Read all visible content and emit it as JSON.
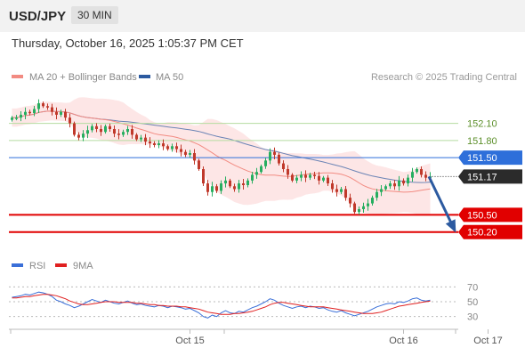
{
  "header": {
    "symbol": "USD/JPY",
    "timeframe": "30 MIN",
    "datetime": "Thursday, October 16, 2025 1:05:37 PM CET"
  },
  "legend": {
    "ma20_label": "MA 20 + Bollinger Bands",
    "ma50_label": "MA 50",
    "copyright": "Research © 2025 Trading Central"
  },
  "rsi_legend": {
    "rsi_label": "RSI",
    "ma_label": "9MA"
  },
  "colors": {
    "ma20": "#f28b82",
    "ma50": "#2c5aa0",
    "band_fill": "#fde2e2",
    "up": "#27ae60",
    "down": "#c0392b",
    "resistance": "#b5dca0",
    "pivot": "#2e6fda",
    "support": "#e10000",
    "rsi": "#3a6fd8",
    "rsi_ma": "#e02020"
  },
  "chart_data": [
    {
      "type": "candlestick",
      "title": "USD/JPY 30 MIN",
      "ylim": [
        149.9,
        152.7
      ],
      "x_ticks": [
        {
          "index": 40,
          "label": "Oct 15"
        },
        {
          "index": 88,
          "label": "Oct 16"
        },
        {
          "index": 107,
          "label": "Oct 17"
        }
      ],
      "levels": [
        {
          "value": 152.1,
          "label": "152.10",
          "role": "resistance"
        },
        {
          "value": 151.8,
          "label": "151.80",
          "role": "resistance"
        },
        {
          "value": 151.5,
          "label": "151.50",
          "role": "pivot"
        },
        {
          "value": 150.5,
          "label": "150.50",
          "role": "support"
        },
        {
          "value": 150.2,
          "label": "150.20",
          "role": "support"
        }
      ],
      "last_price": {
        "value": 151.17,
        "label": "151.17"
      },
      "forecast": {
        "from": 151.17,
        "to": 150.2
      },
      "close": [
        152.2,
        152.2,
        152.25,
        152.3,
        152.28,
        152.35,
        152.45,
        152.4,
        152.38,
        152.3,
        152.25,
        152.3,
        152.2,
        152.1,
        151.9,
        151.85,
        151.92,
        151.98,
        152.05,
        152.0,
        151.95,
        152.05,
        152.0,
        151.92,
        151.9,
        151.95,
        152.0,
        151.9,
        151.82,
        151.85,
        151.78,
        151.75,
        151.72,
        151.75,
        151.7,
        151.65,
        151.7,
        151.65,
        151.6,
        151.55,
        151.58,
        151.45,
        151.3,
        151.05,
        150.9,
        151.0,
        150.92,
        151.05,
        151.1,
        151.0,
        150.95,
        151.05,
        151.02,
        151.1,
        151.2,
        151.25,
        151.35,
        151.45,
        151.6,
        151.55,
        151.4,
        151.3,
        151.2,
        151.1,
        151.15,
        151.2,
        151.15,
        151.2,
        151.18,
        151.1,
        151.15,
        151.05,
        150.95,
        150.9,
        150.95,
        150.8,
        150.7,
        150.55,
        150.6,
        150.65,
        150.7,
        150.8,
        150.9,
        150.95,
        151.0,
        151.05,
        151.0,
        151.1,
        151.05,
        151.15,
        151.25,
        151.3,
        151.2,
        151.15,
        151.17
      ],
      "rsi": {
        "ylim": [
          20,
          80
        ],
        "levels": [
          70,
          50,
          30
        ],
        "rsi": [
          56,
          57,
          58,
          60,
          59,
          61,
          63,
          62,
          60,
          57,
          52,
          50,
          47,
          45,
          42,
          44,
          47,
          50,
          53,
          51,
          49,
          52,
          50,
          48,
          47,
          49,
          51,
          48,
          46,
          47,
          45,
          44,
          43,
          45,
          44,
          42,
          44,
          43,
          42,
          40,
          41,
          38,
          35,
          30,
          28,
          32,
          30,
          35,
          38,
          35,
          34,
          37,
          36,
          39,
          42,
          44,
          47,
          50,
          54,
          52,
          48,
          45,
          43,
          41,
          43,
          44,
          42,
          44,
          43,
          41,
          42,
          39,
          37,
          36,
          38,
          35,
          33,
          31,
          33,
          35,
          37,
          40,
          43,
          45,
          47,
          48,
          47,
          50,
          49,
          51,
          54,
          55,
          52,
          51,
          52
        ],
        "ma": [
          55,
          55,
          56,
          57,
          57,
          58,
          59,
          60,
          60,
          59,
          58,
          56,
          54,
          51,
          49,
          47,
          46,
          46,
          47,
          48,
          49,
          50,
          50,
          50,
          49,
          49,
          49,
          49,
          48,
          48,
          47,
          46,
          46,
          45,
          45,
          44,
          44,
          44,
          43,
          43,
          42,
          41,
          40,
          38,
          36,
          35,
          34,
          33,
          33,
          33,
          34,
          34,
          35,
          36,
          37,
          39,
          41,
          43,
          46,
          48,
          49,
          49,
          48,
          47,
          46,
          45,
          44,
          43,
          43,
          43,
          43,
          42,
          41,
          40,
          39,
          38,
          37,
          36,
          35,
          34,
          34,
          34,
          35,
          36,
          38,
          40,
          42,
          44,
          45,
          46,
          47,
          48,
          49,
          50,
          51
        ]
      }
    }
  ]
}
